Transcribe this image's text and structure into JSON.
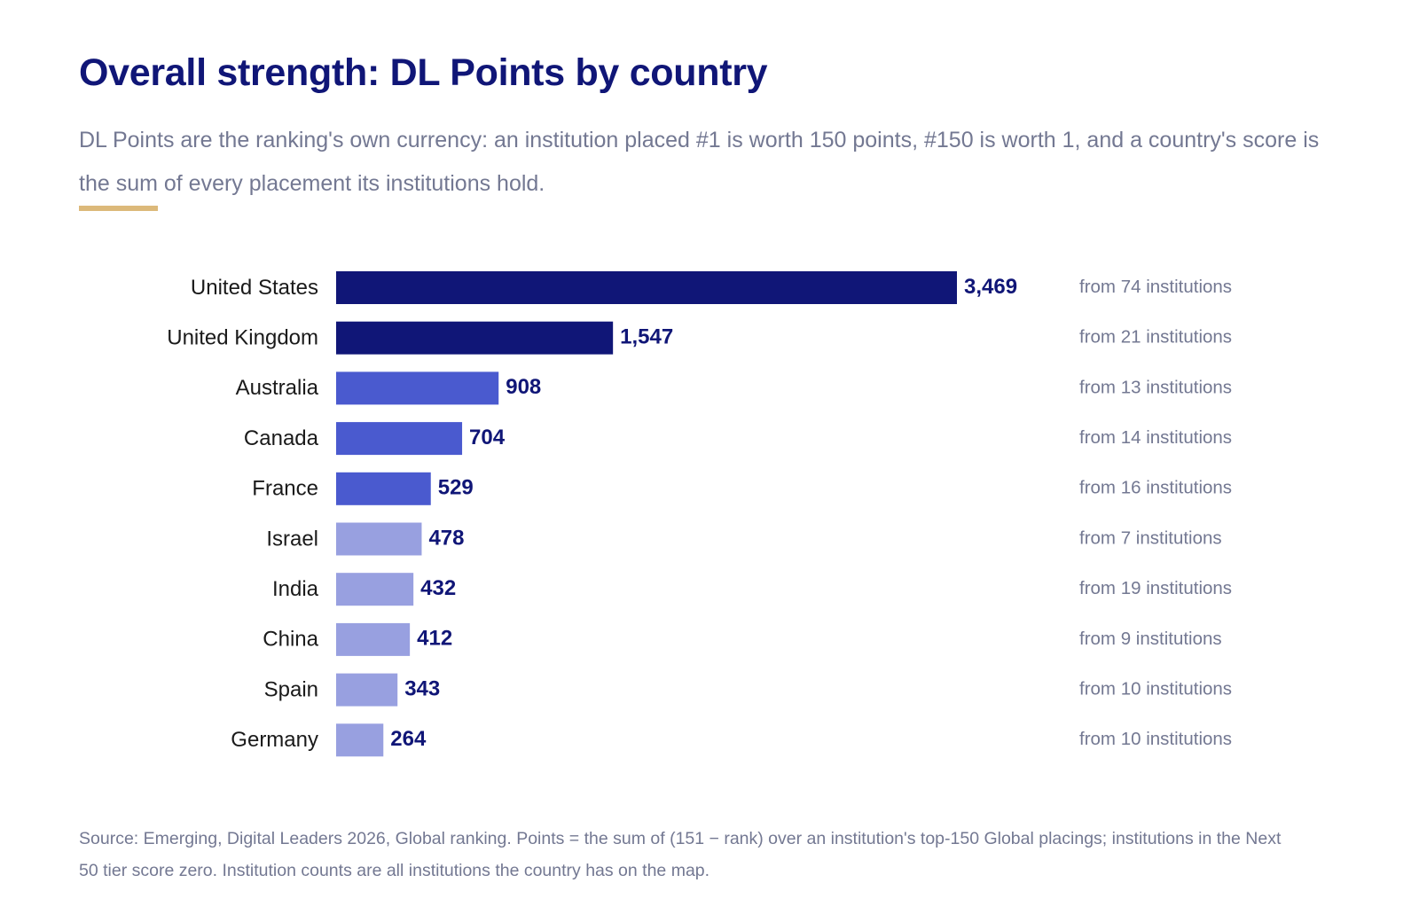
{
  "header": {
    "title": "Overall strength: DL Points by country",
    "subtitle": "DL Points are the ranking's own currency: an institution placed #1 is worth 150 points, #150 is worth 1, and a country's score is the sum of every placement its institutions hold."
  },
  "footer": {
    "source": "Source: Emerging, Digital Leaders 2026, Global ranking. Points = the sum of (151 − rank) over an institution's top-150 Global placings; institutions in the Next 50 tier score zero. Institution counts are all institutions the country has on the map."
  },
  "colors": {
    "accent_rule": "#dcb97a",
    "tier_1": "#101677",
    "tier_2": "#4a5acf",
    "tier_3": "#98a0e0",
    "value_label": "#101677",
    "category_label": "#1a1a1a",
    "note_label": "#737892"
  },
  "chart_data": {
    "type": "bar",
    "orientation": "horizontal",
    "title": "Overall strength: DL Points by country",
    "xlabel": "",
    "ylabel": "",
    "grid": false,
    "legend": "none",
    "xlim": [
      0,
      3469
    ],
    "categories": [
      "United States",
      "United Kingdom",
      "Australia",
      "Canada",
      "France",
      "Israel",
      "India",
      "China",
      "Spain",
      "Germany"
    ],
    "values": [
      3469,
      1547,
      908,
      704,
      529,
      478,
      432,
      412,
      343,
      264
    ],
    "value_labels": [
      "3,469",
      "1,547",
      "908",
      "704",
      "529",
      "478",
      "432",
      "412",
      "343",
      "264"
    ],
    "notes": [
      "from 74 institutions",
      "from 21 institutions",
      "from 13 institutions",
      "from 14 institutions",
      "from 16 institutions",
      "from 7 institutions",
      "from 19 institutions",
      "from 9 institutions",
      "from 10 institutions",
      "from 10 institutions"
    ],
    "color_tiers": [
      1,
      1,
      2,
      2,
      2,
      3,
      3,
      3,
      3,
      3
    ]
  }
}
